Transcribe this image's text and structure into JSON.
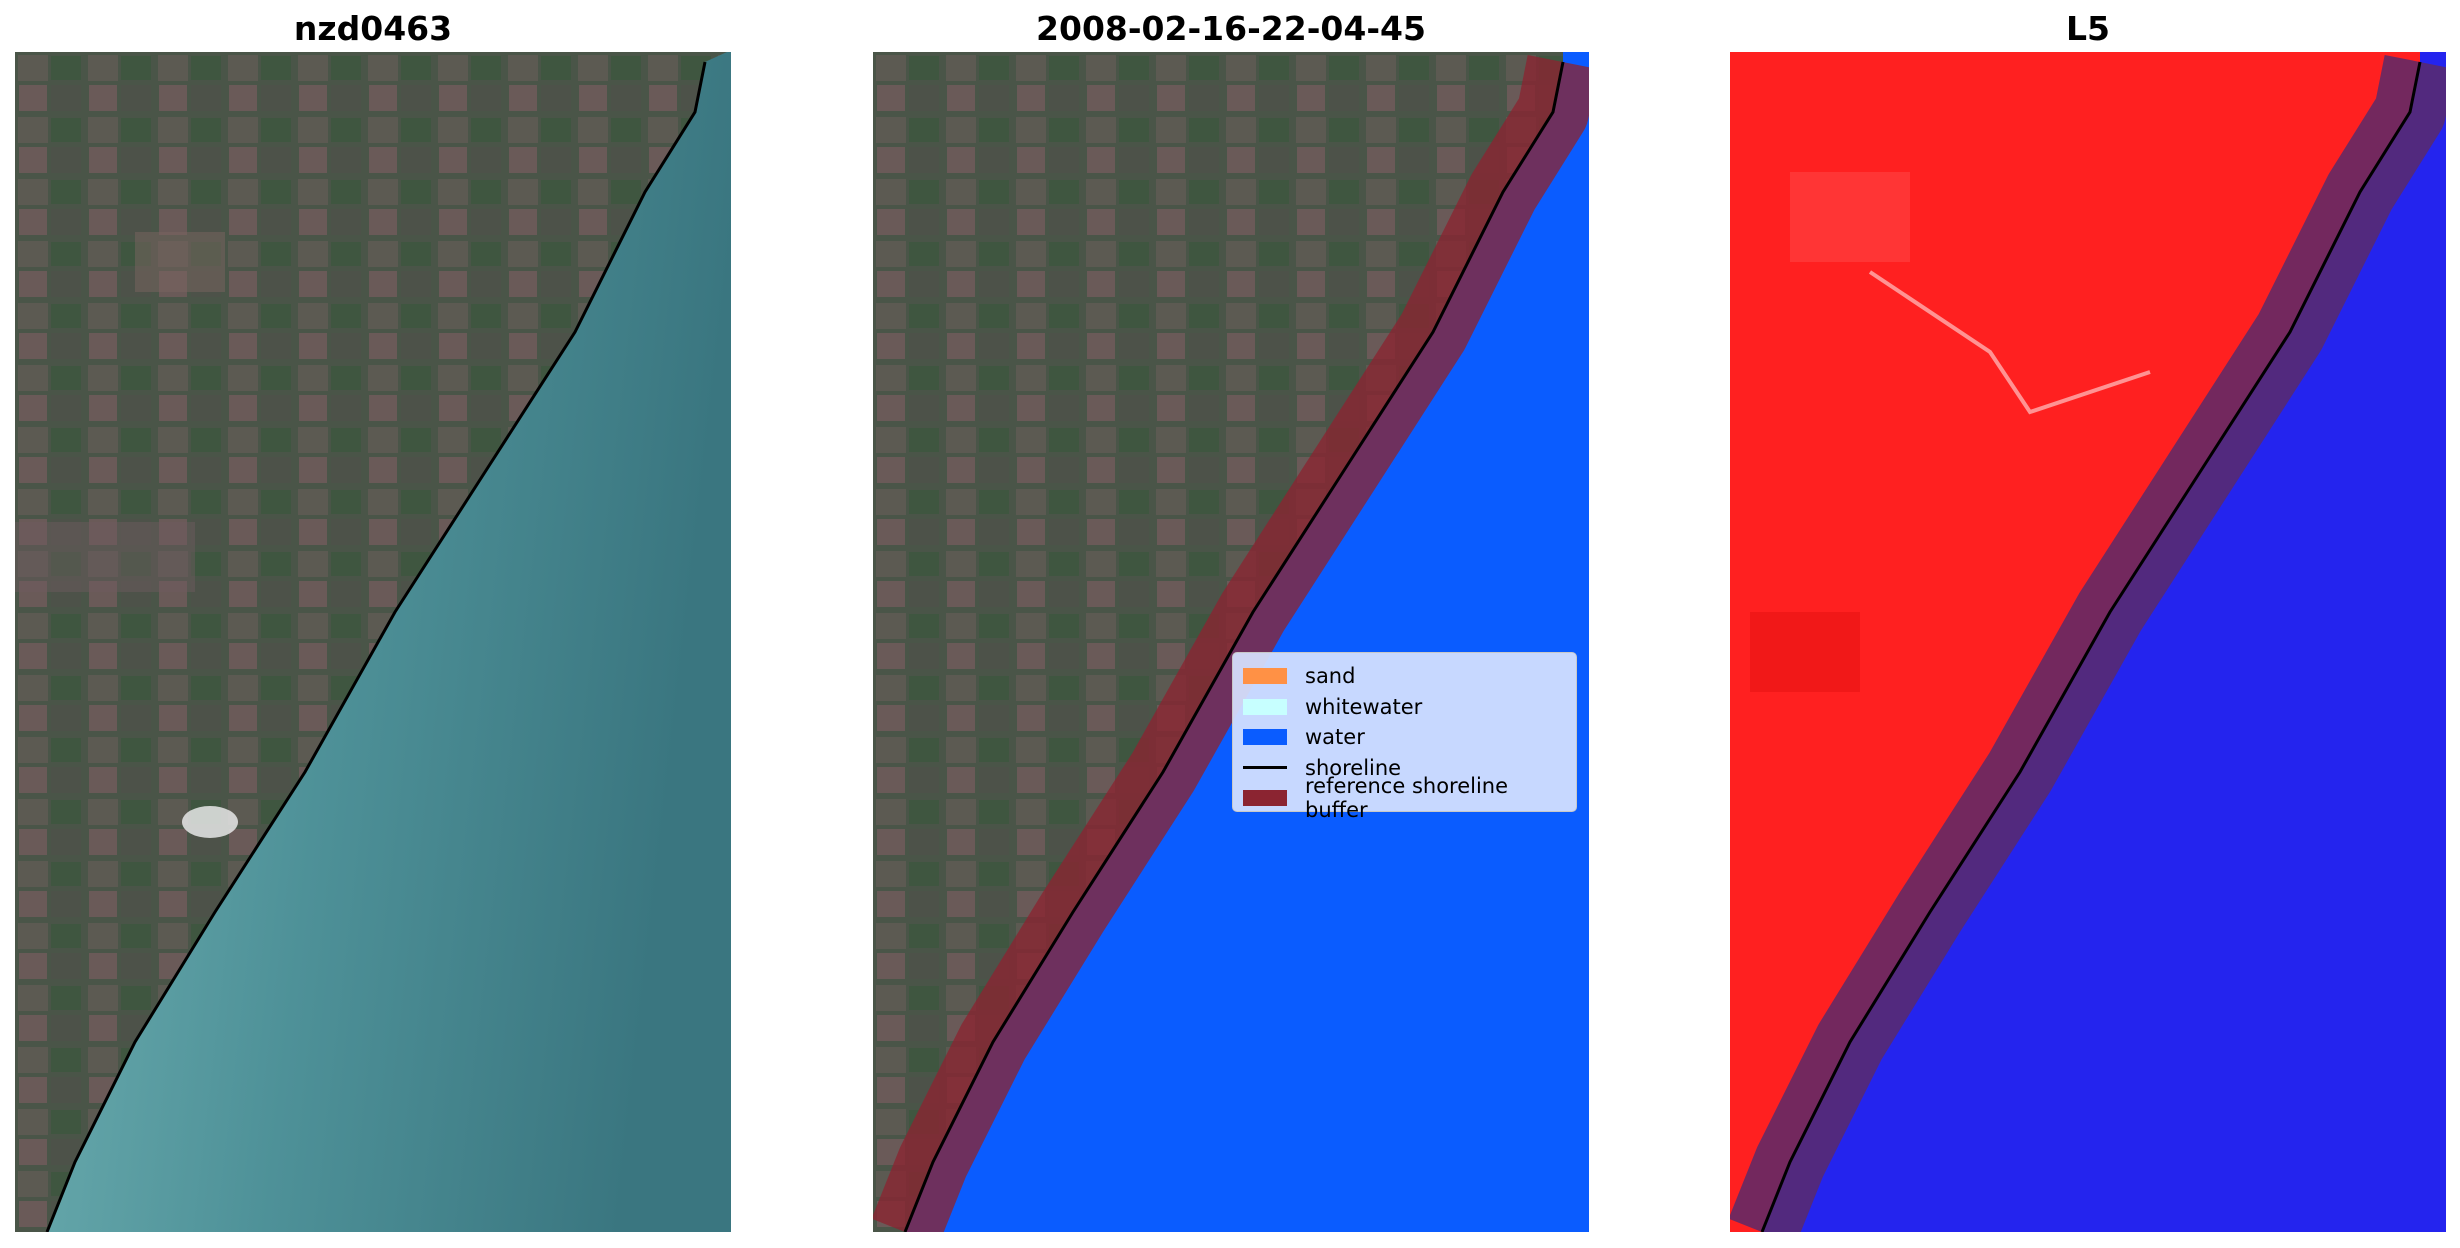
{
  "panels": [
    {
      "title": "nzd0463"
    },
    {
      "title": "2008-02-16-22-04-45"
    },
    {
      "title": "L5"
    }
  ],
  "legend": {
    "items": [
      {
        "label": "sand",
        "kind": "patch",
        "color": "#ff9145"
      },
      {
        "label": "whitewater",
        "kind": "patch",
        "color": "#c7ffff"
      },
      {
        "label": "water",
        "kind": "patch",
        "color": "#0a5cff"
      },
      {
        "label": "shoreline",
        "kind": "line",
        "color": "#000000"
      },
      {
        "label": "reference shoreline buffer",
        "kind": "patch",
        "color": "#8b2431"
      }
    ]
  },
  "colors": {
    "water_class": "#0a5cff",
    "buffer": "#8b2431",
    "shoreline": "#000000",
    "land_index": "#ff2020",
    "water_index": "#2424ee"
  }
}
